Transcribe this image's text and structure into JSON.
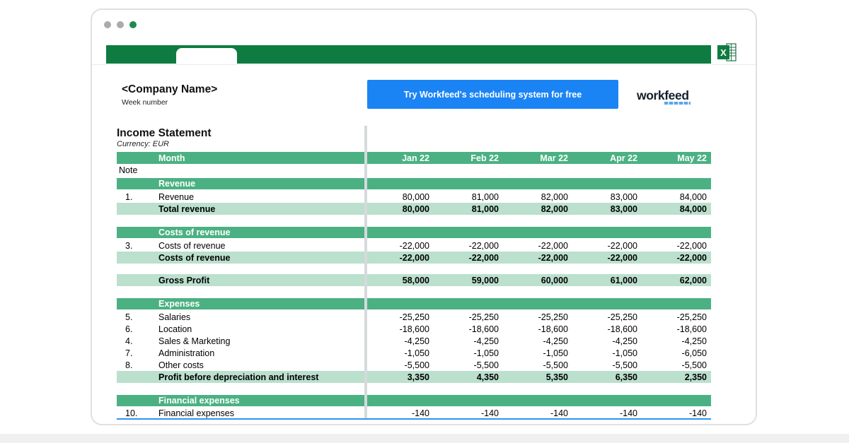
{
  "window": {
    "traffic_dots": [
      "gray",
      "gray",
      "green"
    ],
    "tab_count": 1
  },
  "header": {
    "company_name": "<Company Name>",
    "week_label": "Week number",
    "cta_label": "Try Workfeed's scheduling system for free",
    "logo_text_left": "work",
    "logo_text_right": "feed"
  },
  "sheet": {
    "title": "Income Statement",
    "currency_label": "Currency: EUR",
    "columns": [
      "Jan 22",
      "Feb 22",
      "Mar 22",
      "Apr 22",
      "May 22"
    ],
    "rows": [
      {
        "type": "month-header",
        "label": "Month",
        "values": [
          "Jan 22",
          "Feb 22",
          "Mar 22",
          "Apr 22",
          "May 22"
        ]
      },
      {
        "type": "note",
        "label": "Note"
      },
      {
        "type": "section",
        "label": "Revenue"
      },
      {
        "type": "item",
        "num": "1.",
        "label": "Revenue",
        "values": [
          "80,000",
          "81,000",
          "82,000",
          "83,000",
          "84,000"
        ]
      },
      {
        "type": "total",
        "label": "Total revenue",
        "values": [
          "80,000",
          "81,000",
          "82,000",
          "83,000",
          "84,000"
        ]
      },
      {
        "type": "blank"
      },
      {
        "type": "section",
        "label": "Costs of revenue"
      },
      {
        "type": "item",
        "num": "3.",
        "label": "Costs of revenue",
        "values": [
          "-22,000",
          "-22,000",
          "-22,000",
          "-22,000",
          "-22,000"
        ]
      },
      {
        "type": "total",
        "label": "Costs of revenue",
        "values": [
          "-22,000",
          "-22,000",
          "-22,000",
          "-22,000",
          "-22,000"
        ]
      },
      {
        "type": "blank"
      },
      {
        "type": "total",
        "label": "Gross Profit",
        "values": [
          "58,000",
          "59,000",
          "60,000",
          "61,000",
          "62,000"
        ]
      },
      {
        "type": "blank"
      },
      {
        "type": "section",
        "label": "Expenses"
      },
      {
        "type": "item",
        "num": "5.",
        "label": "Salaries",
        "values": [
          "-25,250",
          "-25,250",
          "-25,250",
          "-25,250",
          "-25,250"
        ]
      },
      {
        "type": "item",
        "num": "6.",
        "label": "Location",
        "values": [
          "-18,600",
          "-18,600",
          "-18,600",
          "-18,600",
          "-18,600"
        ]
      },
      {
        "type": "item",
        "num": "4.",
        "label": "Sales & Marketing",
        "values": [
          "-4,250",
          "-4,250",
          "-4,250",
          "-4,250",
          "-4,250"
        ]
      },
      {
        "type": "item",
        "num": "7.",
        "label": "Administration",
        "values": [
          "-1,050",
          "-1,050",
          "-1,050",
          "-1,050",
          "-6,050"
        ]
      },
      {
        "type": "item",
        "num": "8.",
        "label": "Other costs",
        "values": [
          "-5,500",
          "-5,500",
          "-5,500",
          "-5,500",
          "-5,500"
        ]
      },
      {
        "type": "total",
        "label": "Profit before depreciation and interest",
        "values": [
          "3,350",
          "4,350",
          "5,350",
          "6,350",
          "2,350"
        ]
      },
      {
        "type": "blank"
      },
      {
        "type": "section",
        "label": "Financial expenses"
      },
      {
        "type": "item-underline",
        "num": "10.",
        "label": "Financial expenses",
        "values": [
          "-140",
          "-140",
          "-140",
          "-140",
          "-140"
        ]
      }
    ]
  },
  "colors": {
    "dark_green": "#0e7c41",
    "header_green": "#4bb182",
    "light_green": "#bbe0cd",
    "cta_blue": "#1b84f5",
    "underline_blue": "#2e94f0"
  }
}
